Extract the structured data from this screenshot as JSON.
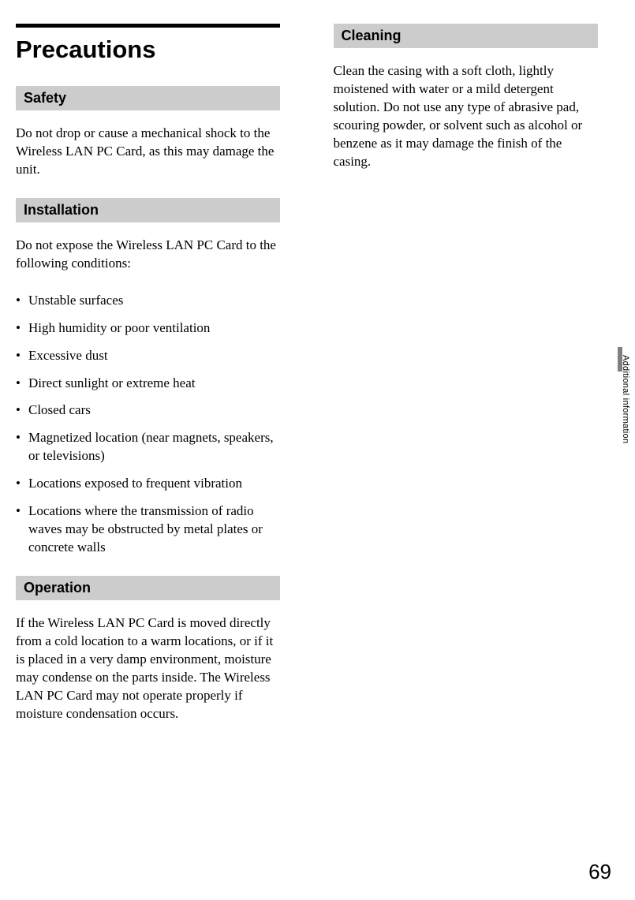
{
  "page": {
    "main_title": "Precautions",
    "page_number": "69",
    "side_tab": "Additional information"
  },
  "sections": {
    "safety": {
      "heading": "Safety",
      "text": "Do not drop or cause a mechanical shock to the Wireless LAN PC Card, as this may damage the unit."
    },
    "installation": {
      "heading": "Installation",
      "intro": "Do not expose the Wireless LAN PC Card to the following conditions:",
      "items": [
        "Unstable surfaces",
        "High humidity or poor ventilation",
        "Excessive dust",
        "Direct sunlight or extreme heat",
        "Closed cars",
        "Magnetized location (near magnets, speakers, or televisions)",
        "Locations exposed to frequent vibration",
        "Locations where the transmission of radio waves may be obstructed by metal plates or concrete walls"
      ]
    },
    "operation": {
      "heading": "Operation",
      "text": "If the Wireless LAN PC Card is moved directly from a cold location to a warm locations, or if it is placed in a very damp environment, moisture may condense on the parts inside. The Wireless LAN PC Card may not operate properly if moisture condensation occurs."
    },
    "cleaning": {
      "heading": "Cleaning",
      "text": "Clean the casing with a soft cloth, lightly moistened with water or a mild detergent solution. Do not use any type of abrasive pad, scouring powder, or solvent such as alcohol or benzene as it may damage the finish of the casing."
    }
  },
  "colors": {
    "heading_bg": "#cccccc",
    "top_bar": "#000000",
    "text": "#000000",
    "tab_marker": "#808080"
  }
}
